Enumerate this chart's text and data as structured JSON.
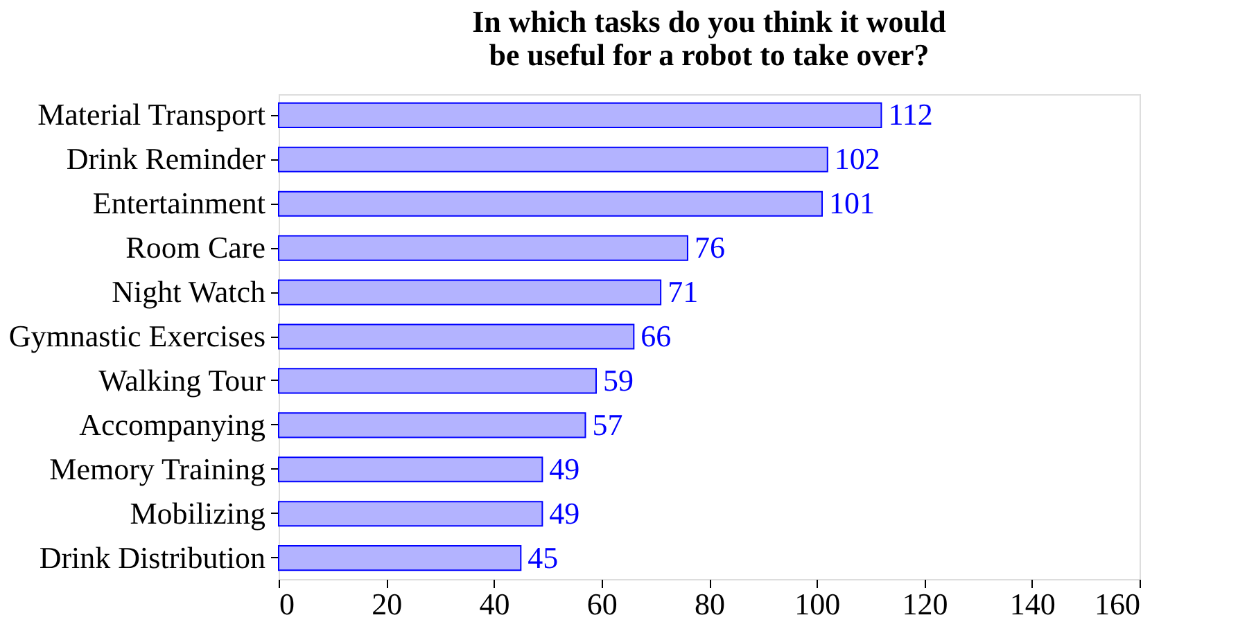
{
  "chart_data": {
    "type": "bar",
    "orientation": "horizontal",
    "title": "In which tasks do you think it would be useful for a robot to take over?",
    "categories": [
      "Material Transport",
      "Drink Reminder",
      "Entertainment",
      "Room Care",
      "Night Watch",
      "Gymnastic Exercises",
      "Walking Tour",
      "Accompanying",
      "Memory Training",
      "Mobilizing",
      "Drink Distribution"
    ],
    "values": [
      112,
      102,
      101,
      76,
      71,
      66,
      59,
      57,
      49,
      49,
      45
    ],
    "color": "#b3b3ff",
    "xlim": [
      0,
      160
    ],
    "xticks": [
      0,
      20,
      40,
      60,
      80,
      100,
      120,
      140,
      160
    ],
    "data_labels": true,
    "grid": false
  }
}
